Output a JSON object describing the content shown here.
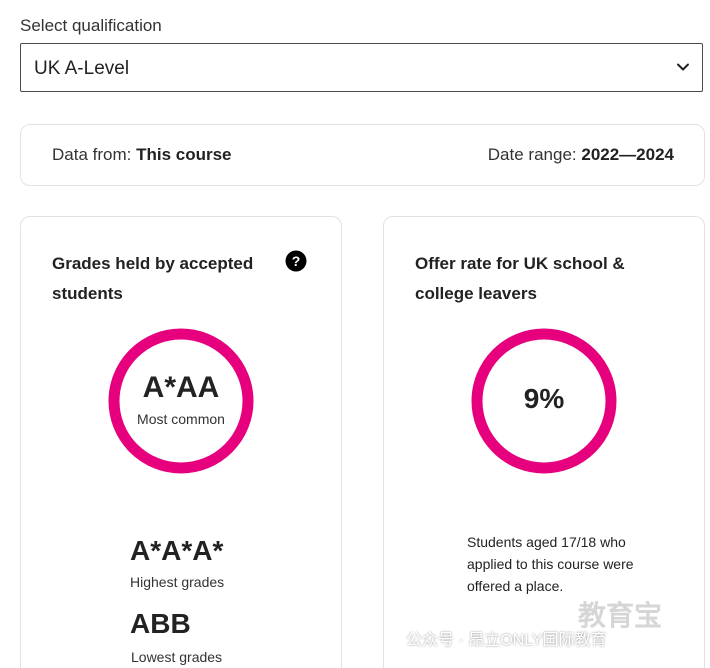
{
  "qualification": {
    "label": "Select qualification",
    "selected": "UK A-Level"
  },
  "source": {
    "data_from_label": "Data from:",
    "data_from_value": "This course",
    "date_range_label": "Date range:",
    "date_range_value": "2022—2024"
  },
  "grades_card": {
    "title": "Grades held by accepted students",
    "most_common_value": "A*AA",
    "most_common_label": "Most common",
    "highest_value": "A*A*A*",
    "highest_label": "Highest grades",
    "lowest_value": "ABB",
    "lowest_label": "Lowest grades"
  },
  "offer_card": {
    "title": "Offer rate for UK school & college leavers",
    "rate": "9%",
    "description": "Students aged 17/18 who applied to this course were offered a place."
  },
  "watermark": {
    "text": "公众号 · 昂立ONLY国际教育",
    "logo": "教育宝"
  },
  "colors": {
    "accent": "#e6007e",
    "border": "#e2e2e2"
  }
}
